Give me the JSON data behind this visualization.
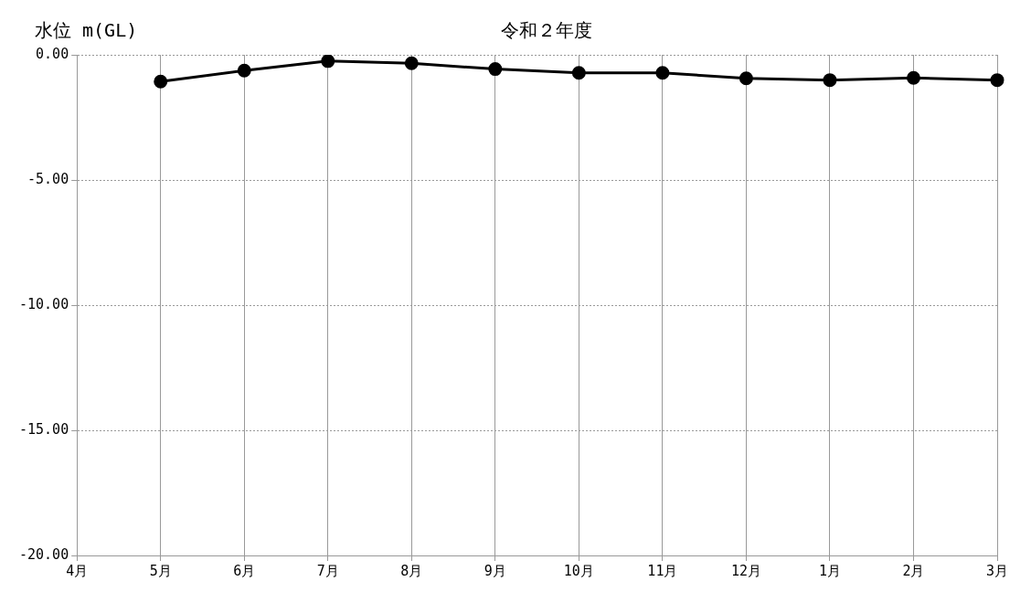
{
  "chart_data": {
    "type": "line",
    "title": "令和２年度",
    "ylabel": "水位 m(GL)",
    "categories": [
      "4月",
      "5月",
      "6月",
      "7月",
      "8月",
      "9月",
      "10月",
      "11月",
      "12月",
      "1月",
      "2月",
      "3月"
    ],
    "series": [
      {
        "color": "#000000",
        "values": [
          null,
          -1.07,
          -0.63,
          -0.25,
          -0.34,
          -0.57,
          -0.72,
          -0.72,
          -0.94,
          -1.01,
          -0.92,
          -1.01
        ]
      }
    ],
    "ylim": [
      -20,
      0
    ],
    "yticks": [
      {
        "value": -20,
        "label": "-20.00"
      },
      {
        "value": -15,
        "label": "-15.00"
      },
      {
        "value": -10,
        "label": "-10.00"
      },
      {
        "value": -5,
        "label": "-5.00"
      },
      {
        "value": 0,
        "label": "0.00"
      }
    ],
    "grid": true,
    "legend": false,
    "marker": "circle",
    "line_style": "solid"
  }
}
